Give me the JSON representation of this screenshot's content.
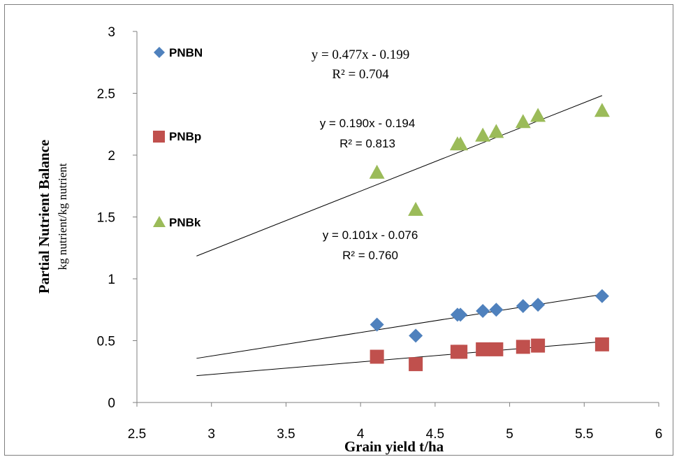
{
  "chart_data": {
    "type": "scatter",
    "title": "",
    "xlabel": "Grain yield t/ha",
    "ylabel": "Partial Nutrient Balance",
    "ylabel_unit": "kg nutrient/kg nutrient",
    "xlim": [
      2.5,
      6
    ],
    "ylim": [
      0,
      3
    ],
    "x_ticks": [
      "2.5",
      "3",
      "3.5",
      "4",
      "4.5",
      "5",
      "5.5",
      "6"
    ],
    "y_ticks": [
      "0",
      "0.5",
      "1",
      "1.5",
      "2",
      "2.5",
      "3"
    ],
    "grid": false,
    "legend_position": "left",
    "series": [
      {
        "name": "PNBN",
        "marker": "diamond",
        "color": "#4f81bd",
        "points": [
          [
            4.11,
            0.63
          ],
          [
            4.37,
            0.54
          ],
          [
            4.65,
            0.71
          ],
          [
            4.67,
            0.71
          ],
          [
            4.82,
            0.74
          ],
          [
            4.91,
            0.75
          ],
          [
            5.09,
            0.78
          ],
          [
            5.19,
            0.79
          ],
          [
            5.62,
            0.86
          ]
        ],
        "trendline": {
          "x_range": [
            2.9,
            5.62
          ],
          "slope": 0.19,
          "intercept": -0.194,
          "equation": "y = 0.190x - 0.194",
          "r2": "R² = 0.813"
        }
      },
      {
        "name": "PNBp",
        "marker": "square",
        "color": "#c0504d",
        "points": [
          [
            4.11,
            0.37
          ],
          [
            4.37,
            0.31
          ],
          [
            4.65,
            0.41
          ],
          [
            4.67,
            0.41
          ],
          [
            4.82,
            0.43
          ],
          [
            4.91,
            0.43
          ],
          [
            5.09,
            0.45
          ],
          [
            5.19,
            0.46
          ],
          [
            5.62,
            0.47
          ]
        ],
        "trendline": {
          "x_range": [
            2.9,
            5.62
          ],
          "slope": 0.101,
          "intercept": -0.076,
          "equation": "y = 0.101x - 0.076",
          "r2": "R² = 0.760"
        }
      },
      {
        "name": "PNBk",
        "marker": "triangle",
        "color": "#9bbb59",
        "points": [
          [
            4.11,
            1.86
          ],
          [
            4.37,
            1.56
          ],
          [
            4.65,
            2.09
          ],
          [
            4.67,
            2.09
          ],
          [
            4.82,
            2.16
          ],
          [
            4.91,
            2.19
          ],
          [
            5.09,
            2.27
          ],
          [
            5.19,
            2.32
          ],
          [
            5.62,
            2.36
          ]
        ],
        "trendline": {
          "x_range": [
            2.9,
            5.62
          ],
          "slope": 0.477,
          "intercept": -0.199,
          "equation": "y = 0.477x - 0.199",
          "r2": "R² = 0.704"
        }
      }
    ]
  }
}
